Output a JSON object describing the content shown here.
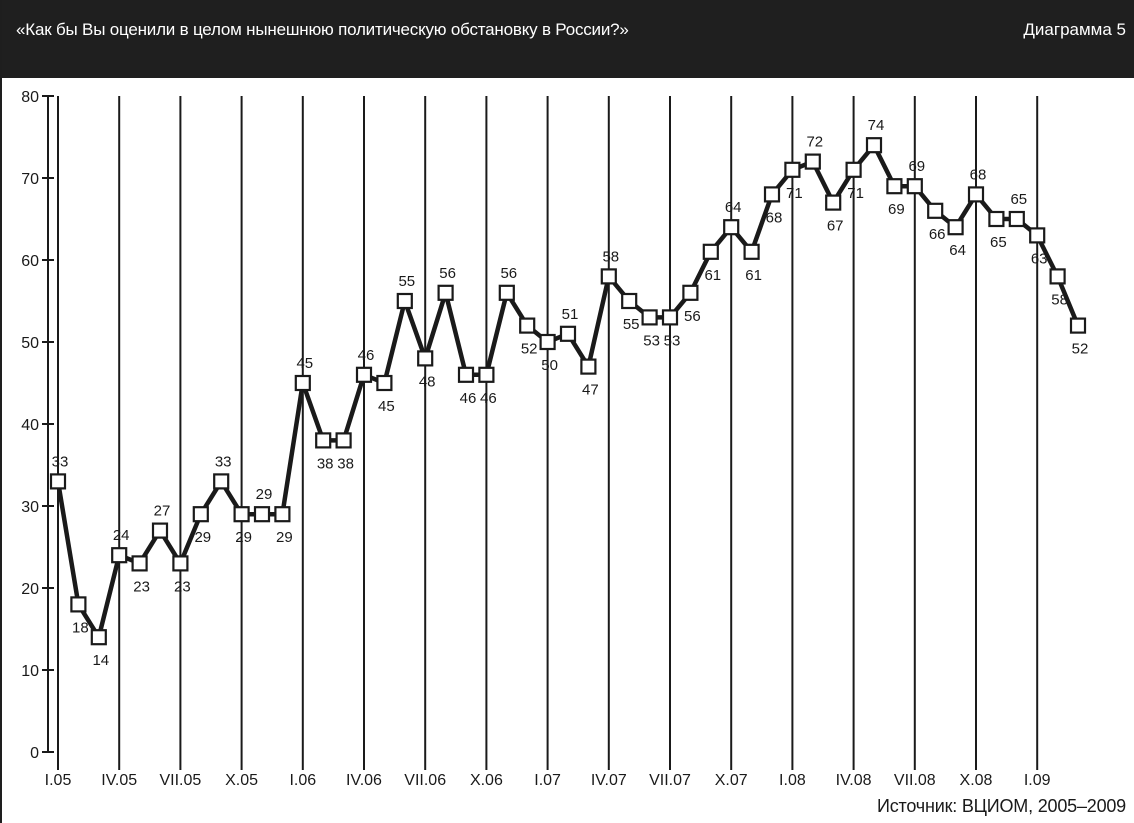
{
  "header": {
    "question": "«Как бы Вы оценили в целом нынешнюю политическую обстановку в России?»",
    "diagram_label": "Диаграмма 5"
  },
  "source": "Источник: ВЦИОМ, 2005–2009",
  "colors": {
    "header_bg": "#1f1f1f",
    "line": "#1a1a1a",
    "marker_fill": "#ffffff"
  },
  "chart_data": {
    "type": "line",
    "title": "«Как бы Вы оценили в целом нынешнюю политическую обстановку в России?»",
    "xlabel": "",
    "ylabel": "",
    "ylim": [
      0,
      80
    ],
    "yticks": [
      0,
      10,
      20,
      30,
      40,
      50,
      60,
      70,
      80
    ],
    "grid": "vertical",
    "legend": "none",
    "x_tick_labels": [
      "I.05",
      "IV.05",
      "VII.05",
      "X.05",
      "I.06",
      "IV.06",
      "VII.06",
      "X.06",
      "I.07",
      "IV.07",
      "VII.07",
      "X.07",
      "I.08",
      "IV.08",
      "VII.08",
      "X.08",
      "I.09"
    ],
    "series": [
      {
        "values": [
          33,
          18,
          14,
          24,
          23,
          27,
          23,
          29,
          33,
          29,
          29,
          29,
          45,
          38,
          38,
          46,
          45,
          55,
          48,
          56,
          46,
          46,
          56,
          52,
          50,
          51,
          47,
          58,
          55,
          53,
          53,
          56,
          61,
          64,
          61,
          68,
          71,
          72,
          67,
          71,
          74,
          69,
          69,
          66,
          64,
          68,
          65,
          65,
          63,
          58,
          52
        ]
      }
    ],
    "data_labels": [
      "33",
      "18",
      "14",
      "24",
      "23",
      "27",
      "23",
      "29",
      "33",
      "29",
      "29",
      "29",
      "45",
      "38",
      "38",
      "46",
      "45",
      "55",
      "48",
      "56",
      "46",
      "46",
      "56",
      "52",
      "50",
      "51",
      "47",
      "58",
      "55",
      "53",
      "53",
      "56",
      "61",
      "64",
      "61",
      "68",
      "71",
      "72",
      "67",
      "71",
      "74",
      "69",
      "69",
      "66",
      "64",
      "68",
      "65",
      "65",
      "63",
      "58",
      "52"
    ]
  }
}
